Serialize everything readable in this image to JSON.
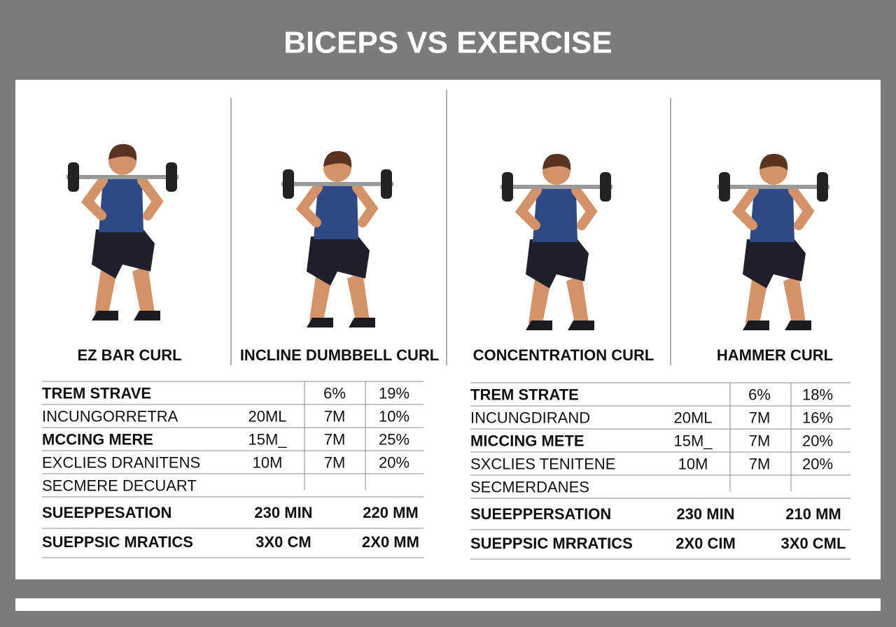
{
  "header": {
    "title": "BICEPS VS EXERCISE"
  },
  "exercises": [
    "EZ BAR CURL",
    "INCLINE DUMBBELL CURL",
    "CONCENTRATION CURL",
    "HAMMER CURL"
  ],
  "tables": [
    {
      "rows": [
        {
          "label": "TREM STRAVE",
          "bold": true,
          "cells": {
            "2": "6%",
            "3": "19%"
          }
        },
        {
          "label": "INCUNGORRETRA",
          "bold": false,
          "cells": {
            "1": "20ML",
            "2": "7M",
            "3": "10%"
          }
        },
        {
          "label": "MCCING MERE",
          "bold": true,
          "cells": {
            "1": "15M_",
            "2": "7M",
            "3": "25%"
          }
        },
        {
          "label": "EXCLIES DRANITENS",
          "bold": false,
          "cells": {
            "1": "10M",
            "2": "7M",
            "3": "20%"
          }
        },
        {
          "label": "SECMERE DECUART",
          "bold": false,
          "cells": {}
        }
      ],
      "summary": [
        {
          "label": "SUEEPPESATION",
          "values": [
            "230 MIN",
            "220 MM"
          ]
        },
        {
          "label": "SUEPPSIC MRATICS",
          "values": [
            "3X0 CM",
            "2X0 MM"
          ]
        }
      ]
    },
    {
      "rows": [
        {
          "label": "TREM STRATE",
          "bold": true,
          "cells": {
            "2": "6%",
            "3": "18%"
          }
        },
        {
          "label": "INCUNGDIRAND",
          "bold": false,
          "cells": {
            "1": "20ML",
            "2": "7M",
            "3": "16%"
          }
        },
        {
          "label": "MICCING METE",
          "bold": true,
          "cells": {
            "1": "15M_",
            "2": "7M",
            "3": "20%"
          }
        },
        {
          "label": "SXCLIES TENITENE",
          "bold": false,
          "cells": {
            "1": "10M",
            "2": "7M",
            "3": "20%"
          }
        },
        {
          "label": "SECMERDANES",
          "bold": false,
          "cells": {}
        }
      ],
      "summary": [
        {
          "label": "SUEEPPERSATION",
          "values": [
            "230 MIN",
            "210 MM"
          ]
        },
        {
          "label": "SUEPPSIC MRRATICS",
          "values": [
            "2X0 CIM",
            "3X0 CML"
          ]
        }
      ]
    }
  ]
}
